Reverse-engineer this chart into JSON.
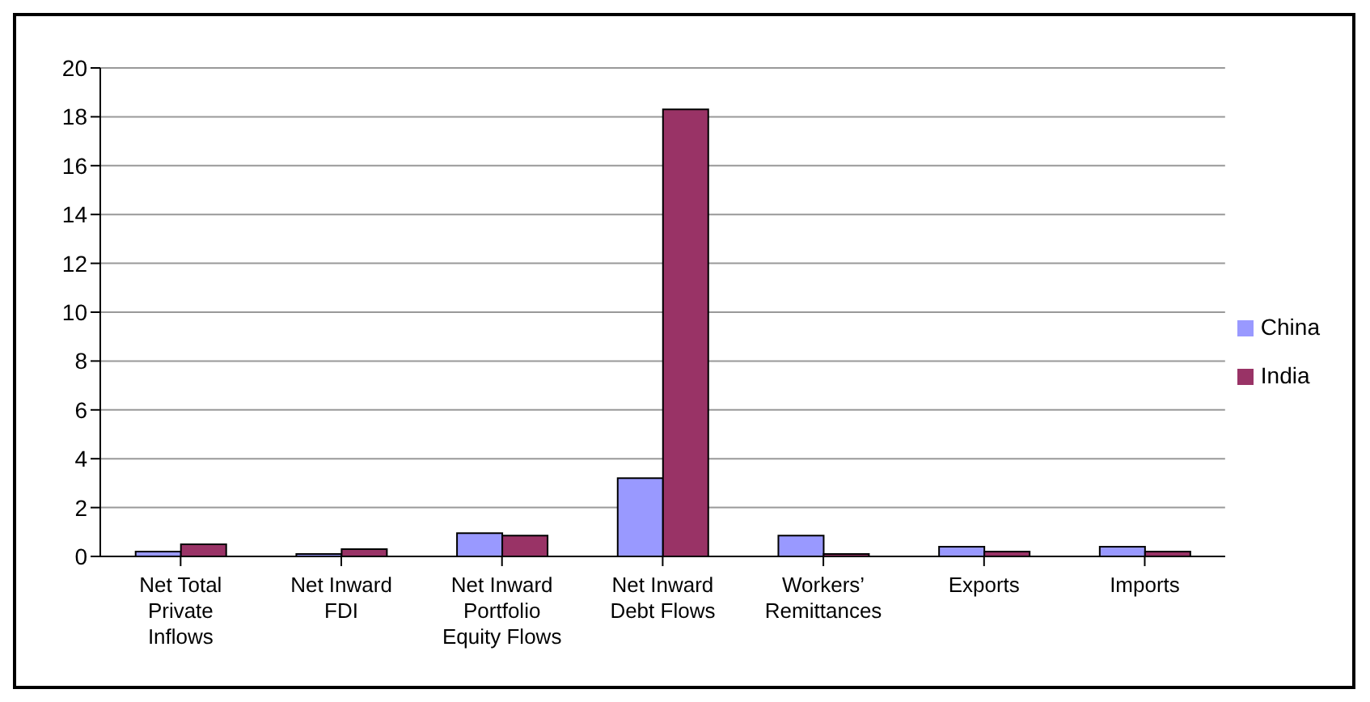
{
  "chart_data": {
    "type": "bar",
    "categories": [
      "Net Total Private Inflows",
      "Net Inward FDI",
      "Net Inward Portfolio Equity Flows",
      "Net Inward Debt Flows",
      "Workers’ Remittances",
      "Exports",
      "Imports"
    ],
    "series": [
      {
        "name": "China",
        "color": "#9999ff",
        "values": [
          0.2,
          0.1,
          0.95,
          3.2,
          0.85,
          0.4,
          0.4
        ]
      },
      {
        "name": "India",
        "color": "#993366",
        "values": [
          0.5,
          0.3,
          0.85,
          18.3,
          0.1,
          0.2,
          0.2
        ]
      }
    ],
    "ylim": [
      0,
      20
    ],
    "yticks": [
      0,
      2,
      4,
      6,
      8,
      10,
      12,
      14,
      16,
      18,
      20
    ],
    "grid": "y",
    "legend": "right"
  }
}
